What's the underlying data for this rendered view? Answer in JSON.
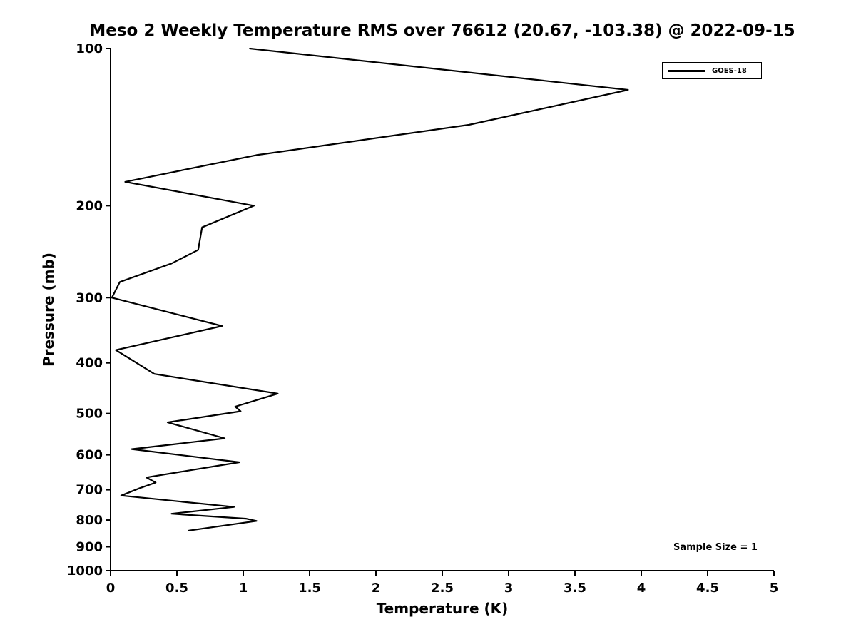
{
  "chart_data": {
    "type": "line",
    "title": "Meso 2 Weekly Temperature RMS over 76612 (20.67, -103.38) @ 2022-09-15",
    "xlabel": "Temperature (K)",
    "ylabel": "Pressure (mb)",
    "xlim": [
      0,
      5
    ],
    "ylim": [
      100,
      1000
    ],
    "y_scale": "log",
    "y_inverted": true,
    "grid": false,
    "x_ticks": [
      0,
      0.5,
      1,
      1.5,
      2,
      2.5,
      3,
      3.5,
      4,
      4.5,
      5
    ],
    "x_tick_labels": [
      "0",
      "0.5",
      "1",
      "1.5",
      "2",
      "2.5",
      "3",
      "3.5",
      "4",
      "4.5",
      "5"
    ],
    "y_ticks": [
      100,
      200,
      300,
      400,
      500,
      600,
      700,
      800,
      900,
      1000
    ],
    "y_tick_labels": [
      "100",
      "200",
      "300",
      "400",
      "500",
      "600",
      "700",
      "800",
      "900",
      "1000"
    ],
    "legend": {
      "position": "top-right",
      "entries": [
        {
          "label": "GOES-18",
          "color": "#000000",
          "line_width": 2
        }
      ]
    },
    "annotation": "Sample Size = 1",
    "series": [
      {
        "name": "GOES-18",
        "color": "#000000",
        "points_format": "[temperature_K, pressure_mb]",
        "points": [
          [
            1.05,
            100
          ],
          [
            3.9,
            120
          ],
          [
            2.7,
            140
          ],
          [
            1.1,
            160
          ],
          [
            0.11,
            180
          ],
          [
            1.08,
            200
          ],
          [
            0.69,
            220
          ],
          [
            0.66,
            243
          ],
          [
            0.46,
            258
          ],
          [
            0.07,
            280
          ],
          [
            0.01,
            300
          ],
          [
            0.84,
            340
          ],
          [
            0.04,
            378
          ],
          [
            0.33,
            420
          ],
          [
            1.26,
            458
          ],
          [
            0.94,
            485
          ],
          [
            0.98,
            495
          ],
          [
            0.43,
            520
          ],
          [
            0.86,
            558
          ],
          [
            0.16,
            585
          ],
          [
            0.97,
            620
          ],
          [
            0.27,
            663
          ],
          [
            0.34,
            678
          ],
          [
            0.22,
            695
          ],
          [
            0.08,
            718
          ],
          [
            0.93,
            755
          ],
          [
            0.46,
            778
          ],
          [
            1.02,
            795
          ],
          [
            1.1,
            803
          ],
          [
            0.59,
            838
          ]
        ]
      }
    ]
  },
  "colors": {
    "background": "#ffffff",
    "axis": "#000000",
    "line": "#000000",
    "text": "#000000"
  }
}
